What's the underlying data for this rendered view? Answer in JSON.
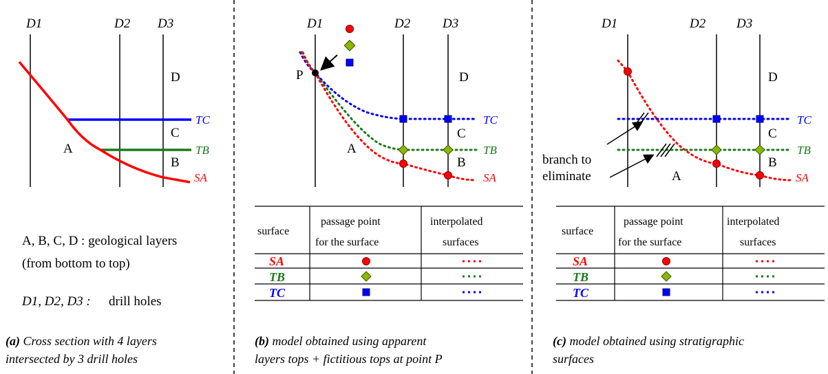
{
  "colors": {
    "sa": "#ff0000",
    "tb": "#1a7a1a",
    "tc": "#0000ff",
    "diamond": "#8ab800",
    "black": "#000000"
  },
  "holes": [
    "D1",
    "D2",
    "D3"
  ],
  "layers": {
    "a": "A",
    "b": "B",
    "c": "C",
    "d": "D"
  },
  "surfaces": {
    "sa": "SA",
    "tb": "TB",
    "tc": "TC"
  },
  "point_p": "P",
  "legend": {
    "layers_line": "A, B, C, D : geological layers",
    "layers_note": "(from bottom to top)",
    "holes_names": "D1, D2, D3 :",
    "holes_desc": "drill holes"
  },
  "table": {
    "headers": [
      "surface",
      "passage point",
      "for the surface",
      "interpolated",
      "surfaces"
    ],
    "rows": [
      {
        "surface": "SA",
        "marker": "circle",
        "line": "dotted red"
      },
      {
        "surface": "TB",
        "marker": "diamond",
        "line": "dotted green"
      },
      {
        "surface": "TC",
        "marker": "square",
        "line": "dotted blue"
      }
    ]
  },
  "branch_label": [
    "branch to",
    "eliminate"
  ],
  "captions": {
    "a": {
      "tag": "(a)",
      "line1": "Cross section with 4 layers",
      "line2": "intersected by 3 drill holes"
    },
    "b": {
      "tag": "(b)",
      "line1": "model obtained using apparent",
      "line2": "layers tops + fictitious tops at point P"
    },
    "c": {
      "tag": "(c)",
      "line1": "model obtained using stratigraphic",
      "line2": "surfaces"
    }
  }
}
